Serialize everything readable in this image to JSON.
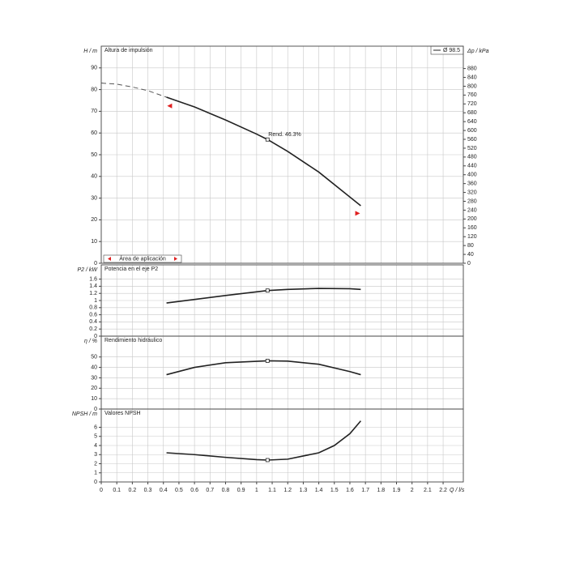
{
  "chart_data": [
    {
      "type": "line",
      "y_label": "H / m",
      "title": "Altura de impulsión",
      "xlim": [
        0,
        2.33
      ],
      "ylim": [
        0,
        100
      ],
      "yticks": [
        0,
        10,
        20,
        30,
        40,
        50,
        60,
        70,
        80,
        90
      ],
      "y2_label": "Δp / kPa",
      "y2lim": [
        0,
        981
      ],
      "y2ticks": [
        0,
        40,
        80,
        120,
        160,
        200,
        240,
        280,
        320,
        360,
        400,
        440,
        480,
        520,
        560,
        600,
        640,
        680,
        720,
        760,
        800,
        840,
        880
      ],
      "legend": "Ø 98.5",
      "legend_position": "upper right",
      "grid": true,
      "series": [
        {
          "x": [
            0,
            0.1,
            0.2,
            0.3,
            0.42
          ],
          "values": [
            83,
            82.5,
            81.2,
            79.5,
            76.5
          ],
          "dashed": true,
          "color": "#555555"
        },
        {
          "name": "Ø 98.5",
          "x": [
            0.42,
            0.6,
            0.8,
            1.0,
            1.07,
            1.2,
            1.4,
            1.6,
            1.67
          ],
          "values": [
            76.5,
            72,
            66,
            59.5,
            57,
            51.5,
            42,
            30.5,
            26.5
          ],
          "color": "#222222"
        }
      ],
      "markers": [
        {
          "x": 1.07,
          "y": 57,
          "label": "Rend.  46.3%"
        }
      ],
      "limits": [
        {
          "x": 0.44,
          "y": 72.5
        },
        {
          "x": 1.65,
          "y": 23
        }
      ],
      "limit_color": "#e02020",
      "annotation": "Área de aplicación"
    },
    {
      "type": "line",
      "y_label": "P2 / kW",
      "title": "Potencia en el eje P2",
      "xlim": [
        0,
        2.33
      ],
      "ylim": [
        0,
        2
      ],
      "yticks": [
        0,
        0.2,
        0.4,
        0.6,
        0.8,
        1,
        1.2,
        1.4,
        1.6
      ],
      "grid": true,
      "series": [
        {
          "x": [
            0.42,
            0.6,
            0.8,
            1.07,
            1.2,
            1.4,
            1.6,
            1.67
          ],
          "values": [
            0.93,
            1.03,
            1.14,
            1.28,
            1.31,
            1.34,
            1.33,
            1.31
          ],
          "color": "#222222"
        }
      ],
      "markers": [
        {
          "x": 1.07,
          "y": 1.28
        }
      ]
    },
    {
      "type": "line",
      "y_label": "η / %",
      "title": "Rendimiento hidráulico",
      "xlim": [
        0,
        2.33
      ],
      "ylim": [
        0,
        70
      ],
      "yticks": [
        0,
        10,
        20,
        30,
        40,
        50
      ],
      "grid": true,
      "series": [
        {
          "x": [
            0.42,
            0.6,
            0.8,
            1.07,
            1.2,
            1.4,
            1.6,
            1.67
          ],
          "values": [
            33,
            40,
            44.5,
            46.3,
            46,
            43,
            36,
            33
          ],
          "color": "#222222"
        }
      ],
      "markers": [
        {
          "x": 1.07,
          "y": 46.3
        }
      ]
    },
    {
      "type": "line",
      "y_label": "NPSH / m",
      "title": "Valores NPSH",
      "xlim": [
        0,
        2.33
      ],
      "ylim": [
        0,
        8
      ],
      "yticks": [
        0,
        1,
        2,
        3,
        4,
        5,
        6
      ],
      "grid": true,
      "x_label": "Q / l/s",
      "xticks": [
        0,
        0.1,
        0.2,
        0.3,
        0.4,
        0.5,
        0.6,
        0.7,
        0.8,
        0.9,
        1,
        1.1,
        1.2,
        1.3,
        1.4,
        1.5,
        1.6,
        1.7,
        1.8,
        1.9,
        2,
        2.1,
        2.2
      ],
      "series": [
        {
          "x": [
            0.42,
            0.6,
            0.8,
            1.0,
            1.07,
            1.2,
            1.4,
            1.5,
            1.6,
            1.67
          ],
          "values": [
            3.2,
            3.0,
            2.7,
            2.45,
            2.4,
            2.5,
            3.2,
            4.0,
            5.3,
            6.7
          ],
          "color": "#222222"
        }
      ],
      "markers": [
        {
          "x": 1.07,
          "y": 2.4
        }
      ]
    }
  ]
}
